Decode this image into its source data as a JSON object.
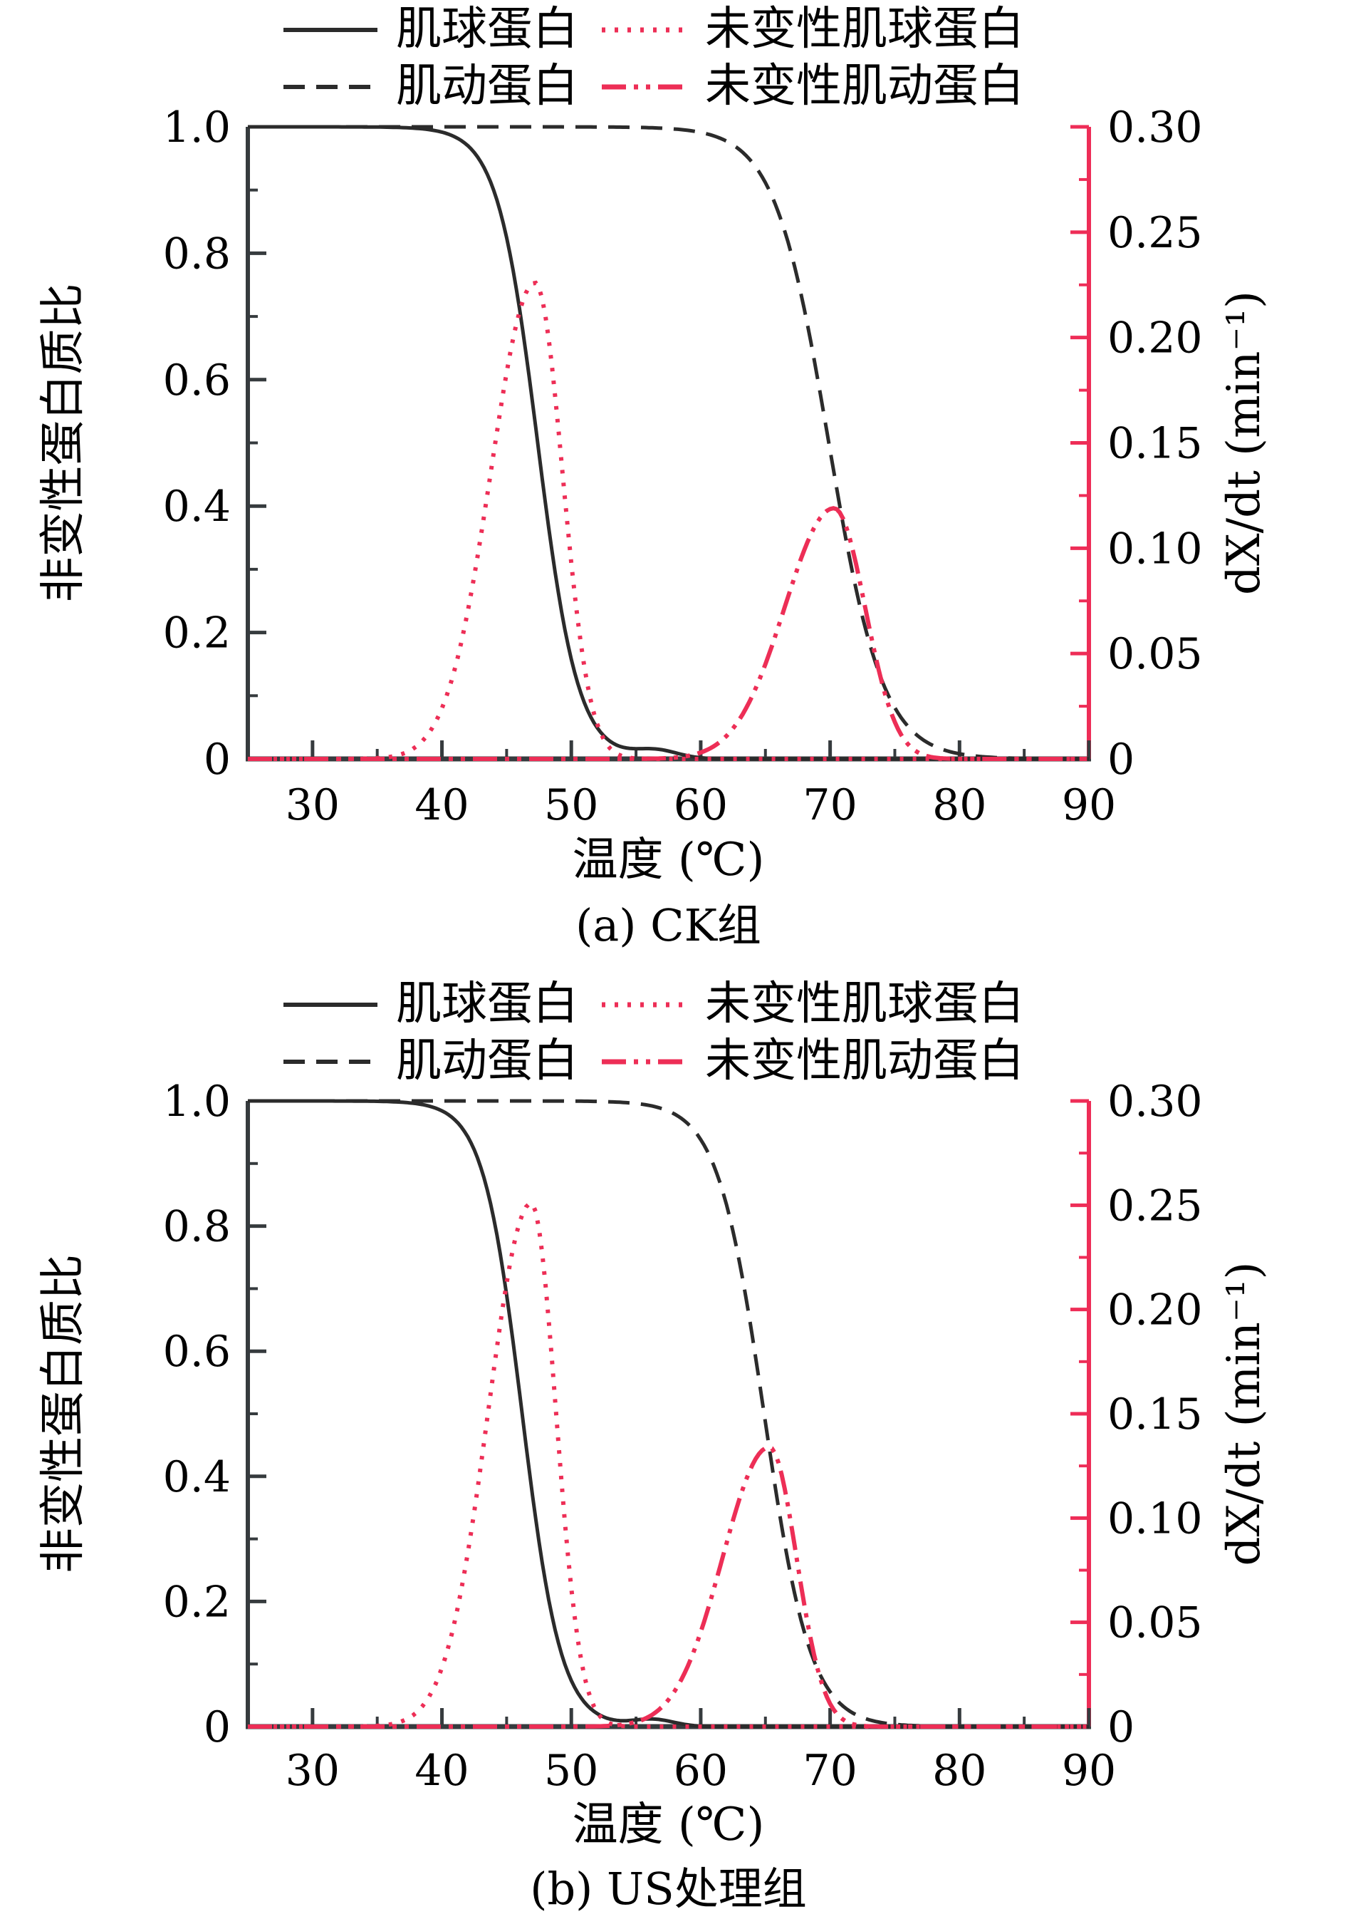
{
  "colors": {
    "series_black": "#2b2b2b",
    "series_pink": "#ed2e56",
    "axis_black": "#363b3e",
    "axis_red": "#ee2d57",
    "text": "#000000",
    "background": "#ffffff"
  },
  "chart_data": [
    {
      "type": "line",
      "title": "(a) CK组",
      "xlabel": "温度 (℃)",
      "ylabel_left": "非变性蛋白质比",
      "ylabel_right": "dX/dt (min⁻¹)",
      "x_range": [
        25,
        90
      ],
      "x_tick_values": [
        30,
        40,
        50,
        60,
        70,
        80,
        90
      ],
      "x_tick_labels": [
        "30",
        "40",
        "50",
        "60",
        "70",
        "80",
        "90"
      ],
      "x_minor_ticks": [
        35,
        45,
        55,
        65,
        75,
        85
      ],
      "y_left_range": [
        0,
        1.0
      ],
      "y_left_tick_values": [
        0,
        0.2,
        0.4,
        0.6,
        0.8,
        1.0
      ],
      "y_left_tick_labels": [
        "0",
        "0.2",
        "0.4",
        "0.6",
        "0.8",
        "1.0"
      ],
      "y_left_minor_ticks": [
        0.1,
        0.3,
        0.5,
        0.7,
        0.9
      ],
      "y_right_range": [
        0,
        0.3
      ],
      "y_right_tick_values": [
        0,
        0.05,
        0.1,
        0.15,
        0.2,
        0.25,
        0.3
      ],
      "y_right_tick_labels": [
        "0",
        "0.05",
        "0.10",
        "0.15",
        "0.20",
        "0.25",
        "0.30"
      ],
      "y_right_minor_ticks": [
        0.025,
        0.075,
        0.125,
        0.175,
        0.225,
        0.275
      ],
      "grid": false,
      "legend_position": "top",
      "legend_rows": [
        [
          0,
          2
        ],
        [
          1,
          3
        ]
      ],
      "series": [
        {
          "name": "肌球蛋白",
          "axis": "left",
          "line_style": "solid",
          "color": "#2b2b2b",
          "model": {
            "kind": "sigmoid",
            "x0": 47.4,
            "k": 1.55,
            "bump_x0": 56.5,
            "bump_A": 0.013,
            "bump_sigma": 1.7
          },
          "key_points": {
            "plateau_value": 1.0,
            "T_onset": 38,
            "T_half": 47.5,
            "T_complete": 53
          }
        },
        {
          "name": "肌动蛋白",
          "axis": "left",
          "line_style": "dashed",
          "color": "#2b2b2b",
          "model": {
            "kind": "sigmoid",
            "x0": 69.9,
            "k": 2.1
          },
          "key_points": {
            "plateau_value": 1.0,
            "T_onset": 58,
            "T_half": 70,
            "T_complete": 76
          }
        },
        {
          "name": "未变性肌球蛋白",
          "axis": "right",
          "line_style": "dotted",
          "color": "#ed2e56",
          "model": {
            "kind": "peak",
            "x0": 47.2,
            "A": 0.226,
            "sigma_left": 3.4,
            "sigma_right": 2.1
          },
          "key_points": {
            "peak_T": 47,
            "peak_value": 0.23,
            "rise_from": 34,
            "falls_to_zero": 54
          }
        },
        {
          "name": "未变性肌动蛋白",
          "axis": "right",
          "line_style": "dashdot",
          "color": "#ed2e56",
          "model": {
            "kind": "peak",
            "x0": 70.3,
            "A": 0.119,
            "sigma_left": 3.8,
            "sigma_right": 2.4
          },
          "key_points": {
            "peak_T": 70,
            "peak_value": 0.12,
            "rise_from": 56,
            "falls_to_zero": 77.5
          }
        }
      ]
    },
    {
      "type": "line",
      "title": "(b) US处理组",
      "xlabel": "温度 (℃)",
      "ylabel_left": "非变性蛋白质比",
      "ylabel_right": "dX/dt (min⁻¹)",
      "x_range": [
        25,
        90
      ],
      "x_tick_values": [
        30,
        40,
        50,
        60,
        70,
        80,
        90
      ],
      "x_tick_labels": [
        "30",
        "40",
        "50",
        "60",
        "70",
        "80",
        "90"
      ],
      "x_minor_ticks": [
        35,
        45,
        55,
        65,
        75,
        85
      ],
      "y_left_range": [
        0,
        1.0
      ],
      "y_left_tick_values": [
        0,
        0.2,
        0.4,
        0.6,
        0.8,
        1.0
      ],
      "y_left_tick_labels": [
        "0",
        "0.2",
        "0.4",
        "0.6",
        "0.8",
        "1.0"
      ],
      "y_left_minor_ticks": [
        0.1,
        0.3,
        0.5,
        0.7,
        0.9
      ],
      "y_right_range": [
        0,
        0.3
      ],
      "y_right_tick_values": [
        0,
        0.05,
        0.1,
        0.15,
        0.2,
        0.25,
        0.3
      ],
      "y_right_tick_labels": [
        "0",
        "0.05",
        "0.10",
        "0.15",
        "0.20",
        "0.25",
        "0.30"
      ],
      "y_right_minor_ticks": [
        0.025,
        0.075,
        0.125,
        0.175,
        0.225,
        0.275
      ],
      "grid": false,
      "legend_position": "top",
      "legend_rows": [
        [
          0,
          2
        ],
        [
          1,
          3
        ]
      ],
      "series": [
        {
          "name": "肌球蛋白",
          "axis": "left",
          "line_style": "solid",
          "color": "#2b2b2b",
          "model": {
            "kind": "sigmoid",
            "x0": 46.2,
            "k": 1.5,
            "bump_x0": 56.3,
            "bump_A": 0.011,
            "bump_sigma": 1.6
          },
          "key_points": {
            "plateau_value": 1.0,
            "T_onset": 37,
            "T_half": 46,
            "T_complete": 52
          }
        },
        {
          "name": "肌动蛋白",
          "axis": "left",
          "line_style": "dashed",
          "color": "#2b2b2b",
          "model": {
            "kind": "sigmoid",
            "x0": 64.9,
            "k": 1.8
          },
          "key_points": {
            "plateau_value": 1.0,
            "T_onset": 54,
            "T_half": 65,
            "T_complete": 71
          }
        },
        {
          "name": "未变性肌球蛋白",
          "axis": "right",
          "line_style": "dotted",
          "color": "#ed2e56",
          "model": {
            "kind": "peak",
            "x0": 46.9,
            "A": 0.251,
            "sigma_left": 3.3,
            "sigma_right": 1.9
          },
          "key_points": {
            "peak_T": 47,
            "peak_value": 0.25,
            "rise_from": 33,
            "falls_to_zero": 52.5
          }
        },
        {
          "name": "未变性肌动蛋白",
          "axis": "right",
          "line_style": "dashdot",
          "color": "#ed2e56",
          "model": {
            "kind": "peak",
            "x0": 65.3,
            "A": 0.134,
            "sigma_left": 3.6,
            "sigma_right": 2.1
          },
          "key_points": {
            "peak_T": 65,
            "peak_value": 0.13,
            "rise_from": 53,
            "falls_to_zero": 71.5
          }
        }
      ]
    }
  ]
}
